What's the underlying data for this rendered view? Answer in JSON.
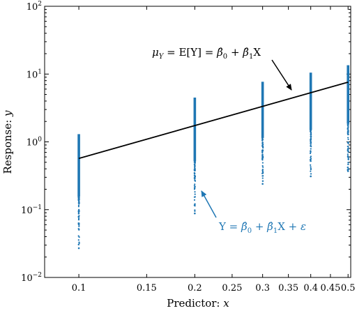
{
  "chart_data": {
    "type": "scatter",
    "xlabel": "Predictor:  x",
    "ylabel": "Response:  y",
    "xscale": "log",
    "yscale": "log",
    "xlim": [
      0.0815,
      0.508
    ],
    "ylim": [
      0.01,
      100
    ],
    "grid": false,
    "x_ticks": [
      {
        "value": 0.1,
        "label": "0.1"
      },
      {
        "value": 0.15,
        "label": "0.15"
      },
      {
        "value": 0.2,
        "label": "0.2"
      },
      {
        "value": 0.25,
        "label": "0.25"
      },
      {
        "value": 0.3,
        "label": "0.3"
      },
      {
        "value": 0.35,
        "label": "0.35"
      },
      {
        "value": 0.4,
        "label": "0.4"
      },
      {
        "value": 0.45,
        "label": "0.45"
      },
      {
        "value": 0.5,
        "label": "0.5"
      }
    ],
    "y_ticks": [
      {
        "value": 0.01,
        "base": "10",
        "exp": "−2"
      },
      {
        "value": 0.1,
        "base": "10",
        "exp": "−1"
      },
      {
        "value": 1,
        "base": "10",
        "exp": "0"
      },
      {
        "value": 10,
        "base": "10",
        "exp": "1"
      },
      {
        "value": 100,
        "base": "10",
        "exp": "2"
      }
    ],
    "series": [
      {
        "kind": "scatter",
        "color": "#1f77b4",
        "groups": [
          {
            "x": 0.1,
            "y_min": 0.027,
            "y_max": 1.3
          },
          {
            "x": 0.2,
            "y_min": 0.088,
            "y_max": 4.5
          },
          {
            "x": 0.3,
            "y_min": 0.24,
            "y_max": 7.7
          },
          {
            "x": 0.4,
            "y_min": 0.31,
            "y_max": 10.5
          },
          {
            "x": 0.5,
            "y_min": 0.37,
            "y_max": 13.5
          }
        ]
      },
      {
        "kind": "line",
        "color": "#000000",
        "x": [
          0.1,
          0.5
        ],
        "y": [
          0.57,
          7.6
        ]
      }
    ],
    "annotations": [
      {
        "id": "mean",
        "text": "μ_Y = E[Y] = β̂_0 + β̂_1 X",
        "color": "#000000"
      },
      {
        "id": "obs",
        "text": "Y = β̂_0 + β̂_1 X + ε",
        "color": "#1f77b4"
      }
    ]
  }
}
